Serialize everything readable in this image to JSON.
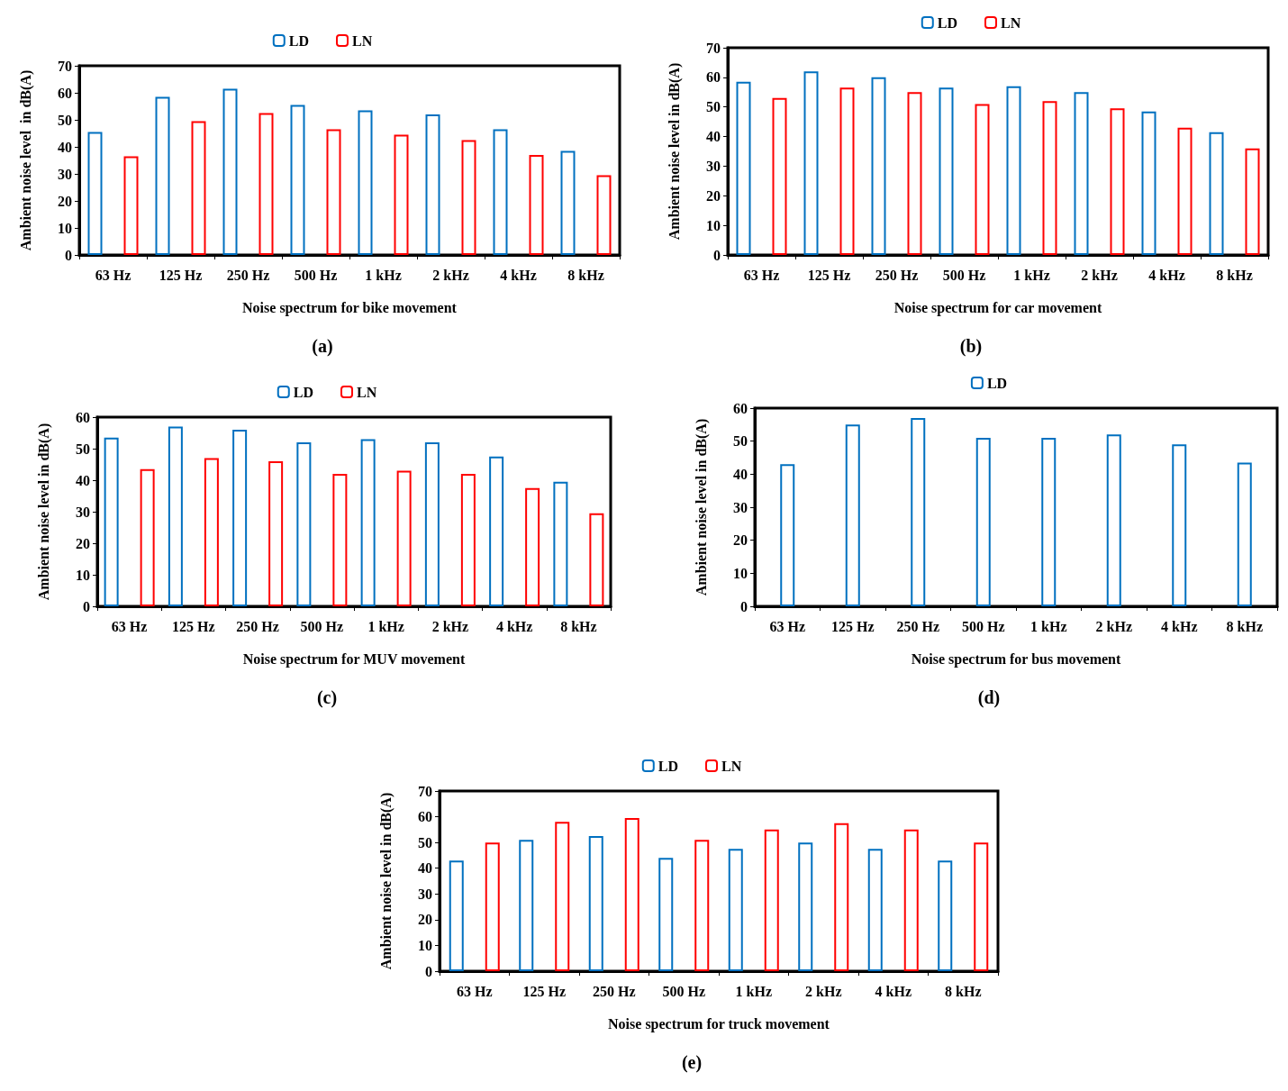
{
  "chart_data": [
    {
      "type": "bar",
      "xlabel": "Noise spectrum for bike movement",
      "ylabel": "Ambient noise level  in dB(A)",
      "categories": [
        "63 Hz",
        "125 Hz",
        "250 Hz",
        "500 Hz",
        "1 kHz",
        "2 kHz",
        "4 kHz",
        "8 kHz"
      ],
      "series": [
        {
          "name": "LD",
          "color": "#0070c0",
          "values": [
            45.5,
            58.5,
            61.5,
            55.5,
            53.5,
            52,
            46.5,
            38.5
          ]
        },
        {
          "name": "LN",
          "color": "#ff0000",
          "values": [
            36.5,
            49.5,
            52.5,
            46.5,
            44.5,
            42.5,
            37,
            29.5
          ]
        }
      ],
      "ylim": [
        0,
        70
      ],
      "yticks": [
        0,
        10,
        20,
        30,
        40,
        50,
        60,
        70
      ],
      "grid": false,
      "legend": "top",
      "annotations": [
        "(a)"
      ]
    },
    {
      "type": "bar",
      "xlabel": "Noise spectrum for car movement",
      "ylabel": "Ambient noise level in dB(A)",
      "categories": [
        "63 Hz",
        "125 Hz",
        "250 Hz",
        "500 Hz",
        "1 kHz",
        "2 kHz",
        "4 kHz",
        "8 kHz"
      ],
      "series": [
        {
          "name": "LD",
          "color": "#0070c0",
          "values": [
            58.5,
            62,
            60,
            56.5,
            57,
            55,
            48.5,
            41.5
          ]
        },
        {
          "name": "LN",
          "color": "#ff0000",
          "values": [
            53,
            56.5,
            55,
            51,
            52,
            49.5,
            43,
            36
          ]
        }
      ],
      "ylim": [
        0,
        70
      ],
      "yticks": [
        0,
        10,
        20,
        30,
        40,
        50,
        60,
        70
      ],
      "grid": false,
      "legend": "top",
      "annotations": [
        "(b)"
      ]
    },
    {
      "type": "bar",
      "xlabel": "Noise spectrum for MUV movement",
      "ylabel": "Ambient noise level in dB(A)",
      "categories": [
        "63 Hz",
        "125 Hz",
        "250 Hz",
        "500 Hz",
        "1 kHz",
        "2 kHz",
        "4 kHz",
        "8 kHz"
      ],
      "series": [
        {
          "name": "LD",
          "color": "#0070c0",
          "values": [
            53.5,
            57,
            56,
            52,
            53,
            52,
            47.5,
            39.5
          ]
        },
        {
          "name": "LN",
          "color": "#ff0000",
          "values": [
            43.5,
            47,
            46,
            42,
            43,
            42,
            37.5,
            29.5
          ]
        }
      ],
      "ylim": [
        0,
        60
      ],
      "yticks": [
        0,
        10,
        20,
        30,
        40,
        50,
        60
      ],
      "grid": false,
      "legend": "top",
      "annotations": [
        "(c)"
      ]
    },
    {
      "type": "bar",
      "xlabel": "Noise spectrum for bus movement",
      "ylabel": "Ambient noise level in dB(A)",
      "categories": [
        "63 Hz",
        "125 Hz",
        "250 Hz",
        "500 Hz",
        "1 kHz",
        "2 kHz",
        "4 kHz",
        "8 kHz"
      ],
      "series": [
        {
          "name": "LD",
          "color": "#0070c0",
          "values": [
            43,
            55,
            57,
            51,
            51,
            52,
            49,
            43.5
          ]
        }
      ],
      "ylim": [
        0,
        60
      ],
      "yticks": [
        0,
        10,
        20,
        30,
        40,
        50,
        60
      ],
      "grid": false,
      "legend": "top",
      "annotations": [
        "(d)"
      ]
    },
    {
      "type": "bar",
      "xlabel": "Noise spectrum for truck movement",
      "ylabel": "Ambient noise level in dB(A)",
      "categories": [
        "63 Hz",
        "125 Hz",
        "250 Hz",
        "500 Hz",
        "1 kHz",
        "2 kHz",
        "4 kHz",
        "8 kHz"
      ],
      "series": [
        {
          "name": "LD",
          "color": "#0070c0",
          "values": [
            43,
            51,
            52.5,
            44,
            47.5,
            50,
            47.5,
            43
          ]
        },
        {
          "name": "LN",
          "color": "#ff0000",
          "values": [
            50,
            58,
            59.5,
            51,
            55,
            57.5,
            55,
            50
          ]
        }
      ],
      "ylim": [
        0,
        70
      ],
      "yticks": [
        0,
        10,
        20,
        30,
        40,
        50,
        60,
        70
      ],
      "grid": false,
      "legend": "top",
      "annotations": [
        "(e)"
      ]
    }
  ]
}
